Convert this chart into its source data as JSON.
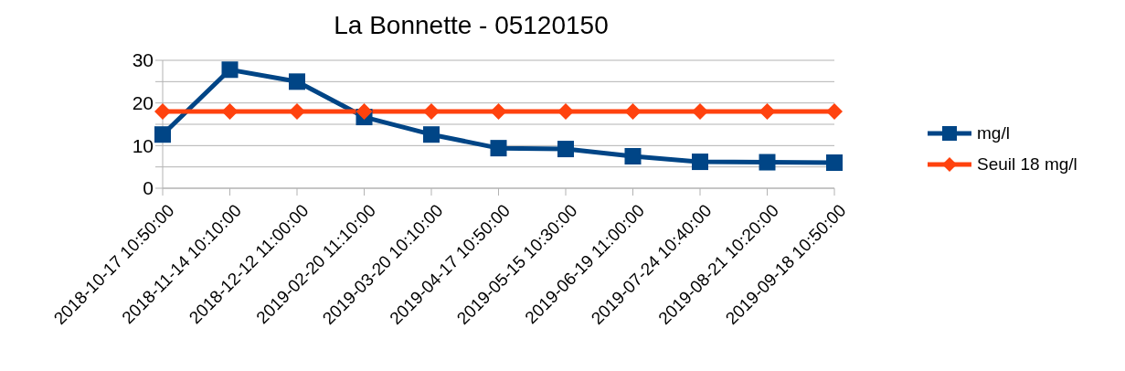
{
  "chart_data": {
    "type": "line",
    "title": "La Bonnette - 05120150",
    "categories": [
      "2018-10-17 10:50:00",
      "2018-11-14 10:10:00",
      "2018-12-12 11:00:00",
      "2019-02-20 11:10:00",
      "2019-03-20 10:10:00",
      "2019-04-17 10:50:00",
      "2019-05-15 10:30:00",
      "2019-06-19 11:00:00",
      "2019-07-24 10:40:00",
      "2019-08-21 10:20:00",
      "2019-09-18 10:50:00"
    ],
    "series": [
      {
        "name": "mg/l",
        "color": "#004586",
        "marker": "square",
        "values": [
          12.6,
          27.8,
          25,
          16.7,
          12.6,
          9.4,
          9.2,
          7.5,
          6.2,
          6.1,
          6.0
        ]
      },
      {
        "name": "Seuil 18 mg/l",
        "color": "#ff420e",
        "marker": "diamond",
        "values": [
          18,
          18,
          18,
          18,
          18,
          18,
          18,
          18,
          18,
          18,
          18
        ]
      }
    ],
    "ylim": [
      0,
      30
    ],
    "yticks": [
      0,
      {
        "value": 5,
        "label": null
      },
      10,
      {
        "value": 15,
        "label": null
      },
      20,
      {
        "value": 25,
        "label": null
      },
      30
    ],
    "grid": "y",
    "legend": "right",
    "line_style": "solid"
  }
}
